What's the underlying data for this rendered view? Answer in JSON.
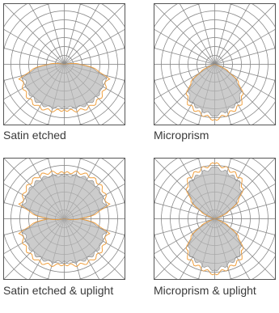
{
  "colors": {
    "frame": "#555555",
    "grid": "#8a8a8a",
    "fill": "#cccccc",
    "outline": "#f0a040",
    "caption": "#3a3a3a"
  },
  "diagrams": [
    {
      "caption": "Satin etched",
      "lobes": [
        "down-wide"
      ]
    },
    {
      "caption": "Microprism",
      "lobes": [
        "down-narrow"
      ]
    },
    {
      "caption": "Satin etched & uplight",
      "lobes": [
        "down-wide",
        "up-wide"
      ]
    },
    {
      "caption": "Microprism & uplight",
      "lobes": [
        "down-narrow",
        "up-narrow"
      ]
    }
  ]
}
